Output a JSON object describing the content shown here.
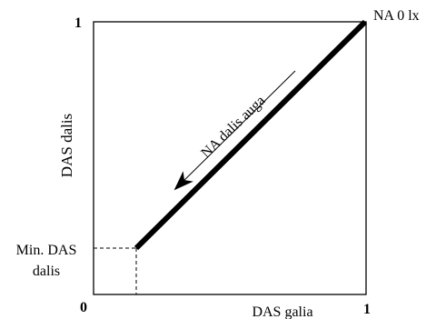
{
  "diagram": {
    "y_axis_label": "DAS dalis",
    "x_axis_label": "DAS galia",
    "origin_label": "0",
    "x_max_label": "1",
    "y_max_label": "1",
    "endpoint_label": "NA 0 lx",
    "arrow_label": "NA dalis auga",
    "min_label_line1": "Min. DAS",
    "min_label_line2": "dalis"
  }
}
